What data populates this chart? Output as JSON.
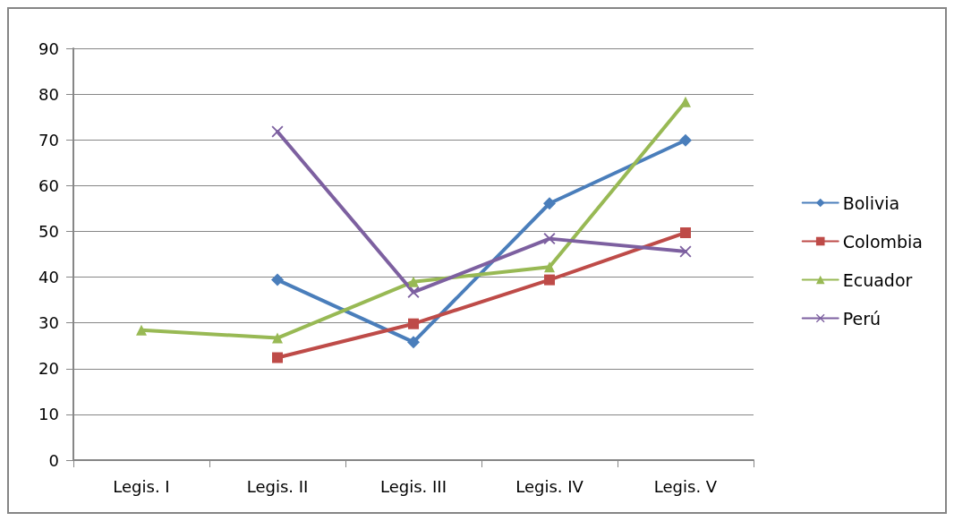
{
  "chart_data": {
    "type": "line",
    "categories": [
      "Legis. I",
      "Legis. II",
      "Legis. III",
      "Legis. IV",
      "Legis. V"
    ],
    "series": [
      {
        "name": "Bolivia",
        "color": "#4a7ebb",
        "marker": "diamond",
        "values": [
          null,
          39.4,
          25.8,
          56.1,
          69.9
        ]
      },
      {
        "name": "Colombia",
        "color": "#be4b48",
        "marker": "square",
        "values": [
          null,
          22.4,
          29.8,
          39.4,
          49.7
        ]
      },
      {
        "name": "Ecuador",
        "color": "#98b954",
        "marker": "triangle",
        "values": [
          28.4,
          26.7,
          39,
          42.2,
          78.3
        ]
      },
      {
        "name": "Perú",
        "color": "#7d60a0",
        "marker": "cross",
        "values": [
          null,
          71.8,
          36.7,
          48.4,
          45.6
        ]
      }
    ],
    "ylim": [
      0,
      90
    ],
    "yticks": [
      0,
      10,
      20,
      30,
      40,
      50,
      60,
      70,
      80,
      90
    ],
    "grid": "y",
    "legend": "right",
    "line_style": "solid"
  }
}
